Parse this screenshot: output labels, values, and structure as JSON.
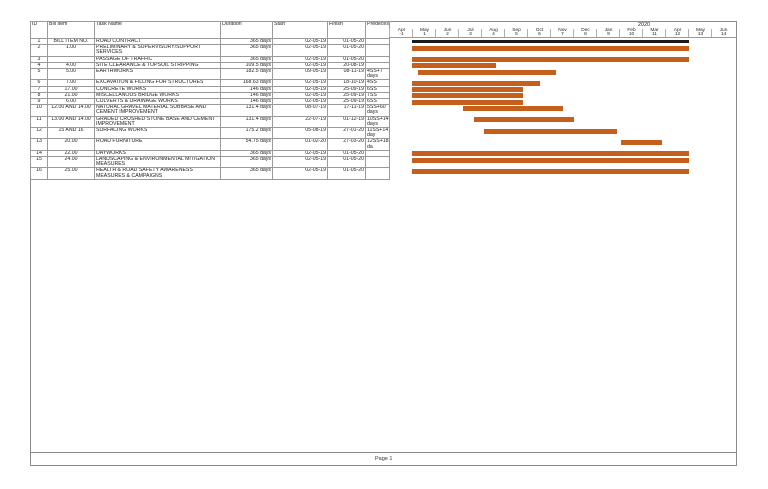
{
  "headers": {
    "id": "ID",
    "bill": "Bill Item",
    "task": "Task Name",
    "duration": "Duration",
    "start": "Start",
    "finish": "Finish",
    "pred": "Predecessors"
  },
  "timeline": {
    "year_left": "",
    "year_right": "2020",
    "months": [
      {
        "m": "Apr",
        "n": "-1"
      },
      {
        "m": "May",
        "n": "1"
      },
      {
        "m": "Jun",
        "n": "2"
      },
      {
        "m": "Jul",
        "n": "3"
      },
      {
        "m": "Aug",
        "n": "4"
      },
      {
        "m": "Sep",
        "n": "5"
      },
      {
        "m": "Oct",
        "n": "6"
      },
      {
        "m": "Nov",
        "n": "7"
      },
      {
        "m": "Dec",
        "n": "8"
      },
      {
        "m": "Jan",
        "n": "9"
      },
      {
        "m": "Feb",
        "n": "10"
      },
      {
        "m": "Mar",
        "n": "11"
      },
      {
        "m": "Apr",
        "n": "12"
      },
      {
        "m": "May",
        "n": "13"
      },
      {
        "m": "Jun",
        "n": "14"
      }
    ]
  },
  "rows": [
    {
      "id": "1",
      "bill": "BILL ITEM NO.",
      "task": "ROAD CONTRACT",
      "duration": "365 days",
      "start": "02-05-19",
      "finish": "01-05-20",
      "pred": ""
    },
    {
      "id": "2",
      "bill": "1.00",
      "task": "PRELIMINARY & SUPERVISORY/SUPPORT SERVICES",
      "duration": "365 days",
      "start": "02-05-19",
      "finish": "01-05-20",
      "pred": ""
    },
    {
      "id": "3",
      "bill": "",
      "task": "PASSAGE OF TRAFFIC",
      "duration": "365 days",
      "start": "02-05-19",
      "finish": "01-05-20",
      "pred": ""
    },
    {
      "id": "4",
      "bill": "4.00",
      "task": "SITE CLEARANCE & TOPSOIL STRIPPING",
      "duration": "109.5 days",
      "start": "02-05-19",
      "finish": "20-08-19",
      "pred": ""
    },
    {
      "id": "5",
      "bill": "5.00",
      "task": "EARTHWORKS",
      "duration": "182.5 days",
      "start": "09-05-19",
      "finish": "08-11-19",
      "pred": "4SS+7 days"
    },
    {
      "id": "6",
      "bill": "7.00",
      "task": "EXCAVATION & FILLING FOR STRUCTURES",
      "duration": "168.63 days",
      "start": "02-05-19",
      "finish": "18-10-19",
      "pred": "4SS"
    },
    {
      "id": "7",
      "bill": "17.00",
      "task": "CONCRETE WORKS",
      "duration": "146 days",
      "start": "02-05-19",
      "finish": "25-09-19",
      "pred": "6SS"
    },
    {
      "id": "8",
      "bill": "21.00",
      "task": "MISCELLANOUS BRIDGE WORKS",
      "duration": "146 days",
      "start": "02-05-19",
      "finish": "25-09-19",
      "pred": "7SS"
    },
    {
      "id": "9",
      "bill": "6.00",
      "task": "CULVERTS & DRAINAGE WORKS",
      "duration": "146 days",
      "start": "02-05-19",
      "finish": "25-09-19",
      "pred": "6SS"
    },
    {
      "id": "10",
      "bill": "12.00 AND 14.00",
      "task": "NATURAL GRAVEL MATERIAL SUBBASE AND CEMENT IMPROVEMENT",
      "duration": "131.4 days",
      "start": "08-07-19",
      "finish": "17-11-19",
      "pred": "5SS+60 days"
    },
    {
      "id": "11",
      "bill": "13.00 AND 14.00",
      "task": "GRADED CRUSHED STONE BASE AND CEMENT IMPROVEMENT",
      "duration": "131.4 days",
      "start": "22-07-19",
      "finish": "01-12-19",
      "pred": "10SS+14 days"
    },
    {
      "id": "12",
      "bill": "15 AND 16",
      "task": "SURFACING WORKS",
      "duration": "175.2 days",
      "start": "05-08-19",
      "finish": "27-01-20",
      "pred": "11SS+14 day"
    },
    {
      "id": "13",
      "bill": "20.00",
      "task": "ROAD FURNITURE",
      "duration": "54.75 days",
      "start": "01-02-20",
      "finish": "27-03-20",
      "pred": "12SS+183 da"
    },
    {
      "id": "14",
      "bill": "22.00",
      "task": "DAYWORKS",
      "duration": "365 days",
      "start": "02-05-19",
      "finish": "01-05-20",
      "pred": ""
    },
    {
      "id": "15",
      "bill": "24.00",
      "task": "LANDSCAPING & ENVIRONMENTAL MITIGATION MEASURES",
      "duration": "365 days",
      "start": "02-05-19",
      "finish": "01-05-20",
      "pred": ""
    },
    {
      "id": "16",
      "bill": "25.00",
      "task": "HEALTH & ROAD SAFETY AWARENESS MEASURES & CAMPAIGNS",
      "duration": "365 days",
      "start": "02-05-19",
      "finish": "01-05-20",
      "pred": ""
    }
  ],
  "gantt": [
    {
      "start": "2019-05-02",
      "finish": "2020-05-01",
      "summary": true
    },
    {
      "start": "2019-05-02",
      "finish": "2020-05-01"
    },
    {
      "start": "2019-05-02",
      "finish": "2020-05-01"
    },
    {
      "start": "2019-05-02",
      "finish": "2019-08-20"
    },
    {
      "start": "2019-05-09",
      "finish": "2019-11-08"
    },
    {
      "start": "2019-05-02",
      "finish": "2019-10-18"
    },
    {
      "start": "2019-05-02",
      "finish": "2019-09-25"
    },
    {
      "start": "2019-05-02",
      "finish": "2019-09-25"
    },
    {
      "start": "2019-05-02",
      "finish": "2019-09-25"
    },
    {
      "start": "2019-07-08",
      "finish": "2019-11-17"
    },
    {
      "start": "2019-07-22",
      "finish": "2019-12-01"
    },
    {
      "start": "2019-08-05",
      "finish": "2020-01-27"
    },
    {
      "start": "2020-02-01",
      "finish": "2020-03-27"
    },
    {
      "start": "2019-05-02",
      "finish": "2020-05-01"
    },
    {
      "start": "2019-05-02",
      "finish": "2020-05-01"
    },
    {
      "start": "2019-05-02",
      "finish": "2020-05-01"
    }
  ],
  "colors": {
    "bar": "#c75f1c",
    "summary": "#1a1a1a"
  },
  "footer": {
    "page": "Page 1"
  }
}
